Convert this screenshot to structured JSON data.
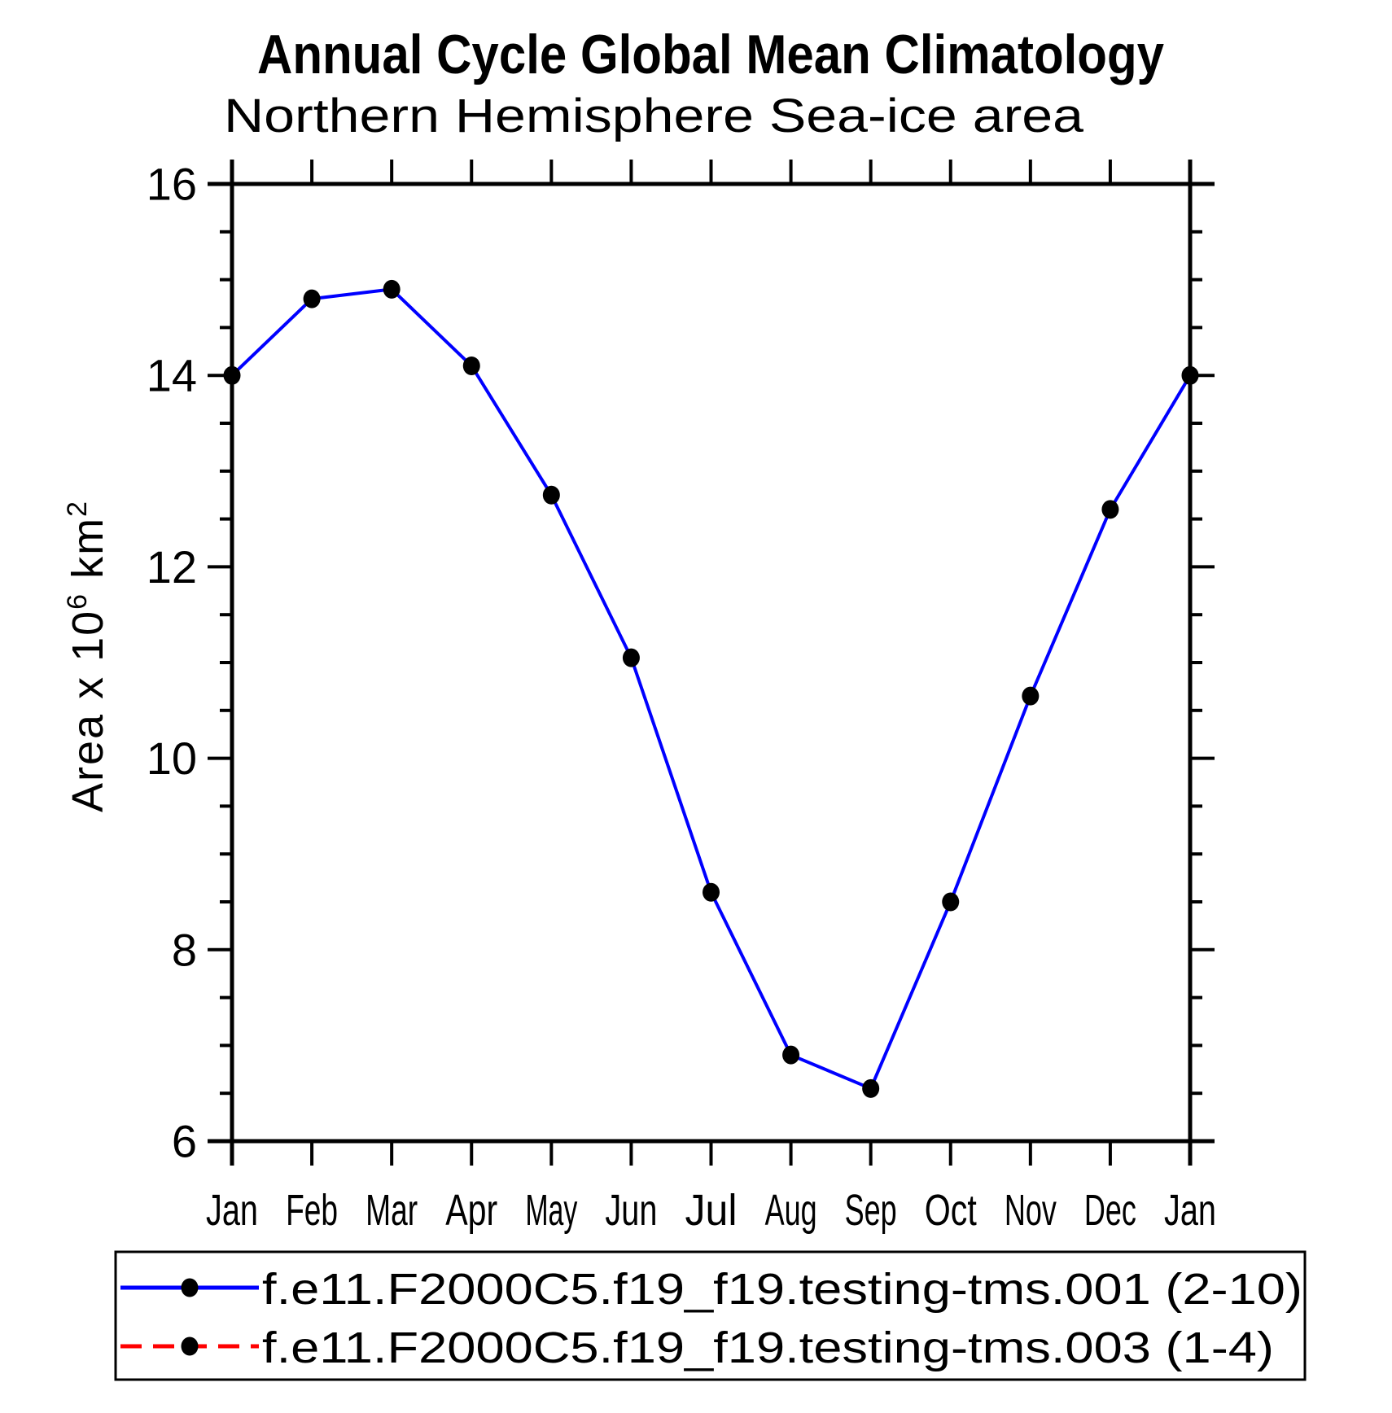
{
  "page": {
    "background": "#ffffff",
    "title_text": "Annual Cycle Global Mean Climatology"
  },
  "chart_data": {
    "type": "line",
    "title": "Annual Cycle Global Mean Climatology",
    "subtitle": "Northern Hemisphere Sea-ice area",
    "ylabel_plain": "Area x 10^6 km^2",
    "ylabel_parts": [
      {
        "text": "Area x 10"
      },
      {
        "text": "6",
        "sup": true
      },
      {
        "text": " km"
      },
      {
        "text": "2",
        "sup": true
      }
    ],
    "xlabel": "",
    "categories": [
      "Jan",
      "Feb",
      "Mar",
      "Apr",
      "May",
      "Jun",
      "Jul",
      "Aug",
      "Sep",
      "Oct",
      "Nov",
      "Dec",
      "Jan"
    ],
    "ylim": [
      6,
      16
    ],
    "yticks_major": [
      6,
      8,
      10,
      12,
      14,
      16
    ],
    "ytick_minor_step": 0.5,
    "grid": false,
    "frame": "box-with-outward-ticks",
    "series": [
      {
        "name": "f.e11.F2000C5.f19_f19.testing-tms.001 (2-10)",
        "color": "#0000ff",
        "line_style": "solid",
        "marker": "filled-circle",
        "marker_color": "#000000",
        "shown_in_plot": true,
        "values": [
          14.0,
          14.8,
          14.9,
          14.1,
          12.75,
          11.05,
          8.6,
          6.9,
          6.55,
          8.5,
          10.65,
          12.6,
          14.0
        ]
      },
      {
        "name": "f.e11.F2000C5.f19_f19.testing-tms.003 (1-4)",
        "color": "#ff0000",
        "line_style": "dashed",
        "marker": "filled-circle",
        "marker_color": "#000000",
        "shown_in_plot": false,
        "values": []
      }
    ],
    "legend": {
      "position": "bottom",
      "border": true,
      "entries": [
        "f.e11.F2000C5.f19_f19.testing-tms.001 (2-10)",
        "f.e11.F2000C5.f19_f19.testing-tms.003 (1-4)"
      ]
    }
  }
}
